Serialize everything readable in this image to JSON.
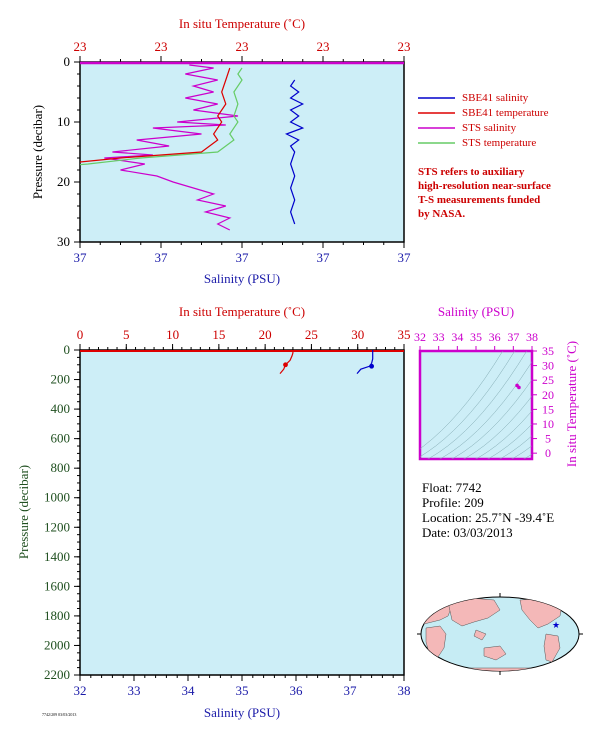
{
  "chart_data": [
    {
      "type": "line",
      "panel": "top-profile",
      "top_axis": {
        "label": "In situ Temperature (˚C)",
        "ticks": [
          "23",
          "23",
          "23",
          "23",
          "23"
        ]
      },
      "bottom_axis": {
        "label": "Salinity (PSU)",
        "ticks": [
          "37",
          "37",
          "37",
          "37",
          "37"
        ]
      },
      "y_axis": {
        "label": "Pressure (decibar)",
        "ticks": [
          "0",
          "10",
          "20",
          "30"
        ],
        "range": [
          0,
          30
        ],
        "inverted": true
      },
      "temp_range": [
        22.6,
        23.4
      ],
      "sal_range": [
        36.6,
        37.4
      ],
      "legend": {
        "placement": "right",
        "entries": [
          {
            "name": "SBE41 salinity",
            "color": "#0000cc"
          },
          {
            "name": "SBE41 temperature",
            "color": "#dd0000"
          },
          {
            "name": "STS salinity",
            "color": "#cc00cc"
          },
          {
            "name": "STS temperature",
            "color": "#66cc66"
          }
        ]
      },
      "note": [
        "STS refers to auxiliary",
        "high-resolution near-surface",
        "T-S measurements funded",
        "by NASA."
      ],
      "series": [
        {
          "name": "STS salinity",
          "color": "#cc00cc",
          "axis": "salinity",
          "points": [
            [
              36.87,
              0.5
            ],
            [
              36.93,
              1
            ],
            [
              36.86,
              2
            ],
            [
              36.94,
              3
            ],
            [
              36.88,
              4
            ],
            [
              36.93,
              5
            ],
            [
              36.86,
              6
            ],
            [
              36.94,
              7
            ],
            [
              36.88,
              8
            ],
            [
              36.99,
              9
            ],
            [
              36.84,
              10
            ],
            [
              36.96,
              10.5
            ],
            [
              36.78,
              11
            ],
            [
              36.9,
              12
            ],
            [
              36.74,
              13
            ],
            [
              36.82,
              14
            ],
            [
              36.68,
              15
            ],
            [
              36.78,
              15.5
            ],
            [
              36.66,
              16
            ],
            [
              36.76,
              17
            ],
            [
              36.7,
              18
            ],
            [
              36.79,
              19
            ],
            [
              36.83,
              20
            ],
            [
              36.88,
              21
            ],
            [
              36.93,
              22
            ],
            [
              36.89,
              23
            ],
            [
              36.96,
              24
            ],
            [
              36.91,
              25
            ],
            [
              36.97,
              26
            ],
            [
              36.94,
              27
            ],
            [
              36.97,
              28
            ]
          ]
        },
        {
          "name": "STS temperature",
          "color": "#66cc66",
          "axis": "temperature",
          "points": [
            [
              23.0,
              1
            ],
            [
              22.99,
              2
            ],
            [
              23.0,
              3
            ],
            [
              22.98,
              5
            ],
            [
              22.99,
              7
            ],
            [
              22.98,
              9
            ],
            [
              22.99,
              10
            ],
            [
              22.97,
              12
            ],
            [
              22.98,
              13
            ],
            [
              22.96,
              14
            ],
            [
              22.94,
              15
            ],
            [
              22.75,
              16
            ],
            [
              22.62,
              17
            ],
            [
              22.45,
              18
            ],
            [
              22.35,
              19
            ],
            [
              22.2,
              20
            ],
            [
              22.14,
              21
            ],
            [
              22.1,
              22
            ],
            [
              22.04,
              23
            ],
            [
              22.01,
              25
            ],
            [
              21.98,
              27
            ],
            [
              21.97,
              28
            ]
          ]
        },
        {
          "name": "SBE41 temperature",
          "color": "#dd0000",
          "axis": "temperature",
          "points": [
            [
              22.97,
              1
            ],
            [
              22.96,
              3
            ],
            [
              22.95,
              5
            ],
            [
              22.96,
              7
            ],
            [
              22.94,
              9
            ],
            [
              22.95,
              10
            ],
            [
              22.93,
              12
            ],
            [
              22.94,
              13
            ],
            [
              22.92,
              14
            ],
            [
              22.9,
              15
            ],
            [
              22.7,
              16
            ],
            [
              22.55,
              17
            ],
            [
              22.4,
              18
            ],
            [
              22.3,
              19
            ],
            [
              22.17,
              20
            ],
            [
              22.11,
              21
            ],
            [
              22.07,
              22
            ],
            [
              22.02,
              23
            ],
            [
              21.98,
              25
            ],
            [
              21.95,
              27
            ],
            [
              21.94,
              28
            ]
          ]
        },
        {
          "name": "SBE41 salinity",
          "color": "#0000cc",
          "axis": "salinity",
          "points": [
            [
              37.13,
              3
            ],
            [
              37.12,
              4
            ],
            [
              37.14,
              5
            ],
            [
              37.12,
              6
            ],
            [
              37.15,
              7
            ],
            [
              37.12,
              8
            ],
            [
              37.14,
              9
            ],
            [
              37.12,
              10
            ],
            [
              37.15,
              11
            ],
            [
              37.11,
              12
            ],
            [
              37.14,
              13
            ],
            [
              37.12,
              14
            ],
            [
              37.13,
              15
            ],
            [
              37.12,
              17
            ],
            [
              37.13,
              19
            ],
            [
              37.12,
              21
            ],
            [
              37.13,
              23
            ],
            [
              37.12,
              25
            ],
            [
              37.13,
              27
            ]
          ]
        }
      ]
    },
    {
      "type": "line",
      "panel": "full-profile",
      "top_axis": {
        "label": "In situ Temperature (˚C)",
        "ticks": [
          "0",
          "5",
          "10",
          "15",
          "20",
          "25",
          "30",
          "35"
        ],
        "range": [
          0,
          35
        ]
      },
      "bottom_axis": {
        "label": "Salinity (PSU)",
        "ticks": [
          "32",
          "33",
          "34",
          "35",
          "36",
          "37",
          "38"
        ],
        "range": [
          32,
          38
        ]
      },
      "y_axis": {
        "label": "Pressure (decibar)",
        "ticks": [
          "0",
          "200",
          "400",
          "600",
          "800",
          "1000",
          "1200",
          "1400",
          "1600",
          "1800",
          "2000",
          "2200"
        ],
        "range": [
          0,
          2200
        ],
        "inverted": true
      },
      "series": [
        {
          "name": "temperature",
          "color": "#dd0000",
          "axis": "temperature",
          "points": [
            [
              23.0,
              0
            ],
            [
              23.0,
              20
            ],
            [
              22.9,
              40
            ],
            [
              22.7,
              70
            ],
            [
              22.2,
              100
            ],
            [
              22.0,
              130
            ],
            [
              21.6,
              160
            ]
          ]
        },
        {
          "name": "salinity",
          "color": "#0000cc",
          "axis": "salinity",
          "points": [
            [
              37.42,
              0
            ],
            [
              37.42,
              30
            ],
            [
              37.42,
              60
            ],
            [
              37.4,
              90
            ],
            [
              37.36,
              110
            ],
            [
              37.2,
              130
            ],
            [
              37.13,
              160
            ]
          ]
        }
      ],
      "markers": [
        {
          "axis": "temperature",
          "value": 22.2,
          "pressure": 100,
          "color": "#dd0000"
        },
        {
          "axis": "salinity",
          "value": 37.4,
          "pressure": 110,
          "color": "#0000cc"
        }
      ]
    },
    {
      "type": "scatter",
      "panel": "ts-diagram",
      "top_axis": {
        "label": "Salinity (PSU)",
        "ticks": [
          "32",
          "33",
          "34",
          "35",
          "36",
          "37",
          "38"
        ],
        "range": [
          32,
          38
        ]
      },
      "right_axis": {
        "label": "In situ Temperature (˚C)",
        "ticks": [
          "0",
          "5",
          "10",
          "15",
          "20",
          "25",
          "30",
          "35"
        ],
        "range": [
          -2,
          35
        ]
      },
      "points": [
        [
          37.2,
          23.2
        ],
        [
          37.3,
          22.5
        ]
      ],
      "point_color": "#cc00cc"
    }
  ],
  "float_info": {
    "float": "Float:  7742",
    "profile": "Profile:  209",
    "location": "Location:  25.7˚N  -39.4˚E",
    "date": "Date:  03/03/2013"
  },
  "map": {
    "float_marker_color": "#0000cc",
    "land_color": "#f4b8b8",
    "ocean_color": "#c6ecf4"
  },
  "footer_text": "7742/209 03/03/2013",
  "colors": {
    "plot_bg": "#cdeef7",
    "red": "#cc0000",
    "blue": "#1a1aa8",
    "magenta": "#cc00cc",
    "green": "#1f4f1f"
  }
}
